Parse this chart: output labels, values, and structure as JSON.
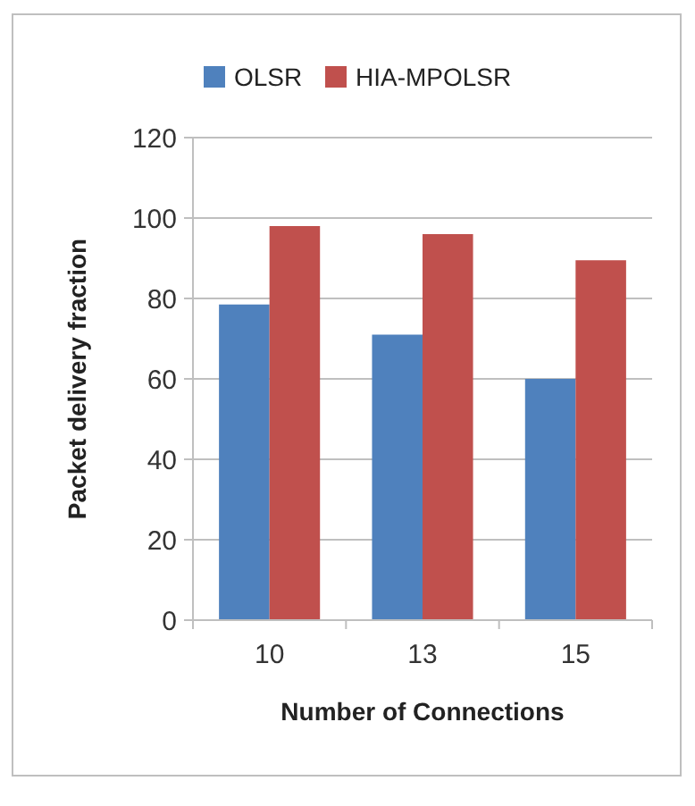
{
  "chart_data": {
    "type": "bar",
    "xlabel": "Number of Connections",
    "ylabel": "Packet delivery fraction",
    "categories": [
      "10",
      "13",
      "15"
    ],
    "series": [
      {
        "name": "OLSR",
        "color": "#4f81bd",
        "values": [
          78.5,
          71,
          60
        ]
      },
      {
        "name": "HIA-MPOLSR",
        "color": "#c0504d",
        "values": [
          98,
          96,
          89.5
        ]
      }
    ],
    "ylim": [
      0,
      120
    ],
    "yticks": [
      0,
      20,
      40,
      60,
      80,
      100,
      120
    ],
    "grid": "y",
    "legend": "top"
  }
}
